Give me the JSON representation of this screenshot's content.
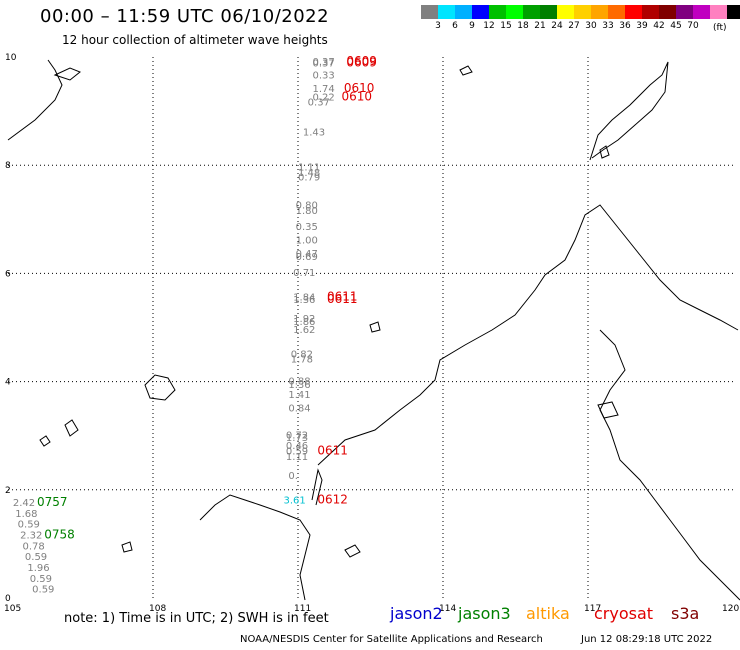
{
  "header": {
    "title": "00:00 – 11:59 UTC 06/10/2022",
    "subtitle": "12 hour collection of altimeter wave heights"
  },
  "scale": {
    "colors": [
      "#808080",
      "#00e5ff",
      "#00b0ff",
      "#0000ff",
      "#00c000",
      "#00ff00",
      "#00a000",
      "#008000",
      "#ffff00",
      "#ffd000",
      "#ffa500",
      "#ff6a00",
      "#ff0000",
      "#b00000",
      "#800000",
      "#800080",
      "#c000c0",
      "#ff80c0",
      "#000000"
    ],
    "labels": [
      "3",
      "6",
      "9",
      "12",
      "15",
      "18",
      "21",
      "24",
      "27",
      "30",
      "33",
      "36",
      "39",
      "42",
      "45",
      "70"
    ],
    "unit": "(ft)"
  },
  "axes": {
    "x_ticks": [
      "105",
      "108",
      "111",
      "114",
      "117",
      "120"
    ],
    "y_ticks": [
      "10",
      "8",
      "6",
      "4",
      "2",
      "0"
    ]
  },
  "observations": [
    {
      "lon": 111.3,
      "lat": 9.85,
      "value": "0.37",
      "color": "#808080"
    },
    {
      "lon": 111.3,
      "lat": 9.82,
      "value": "0.37",
      "color": "#808080"
    },
    {
      "lon": 111.3,
      "lat": 9.6,
      "value": "0.33",
      "color": "#808080"
    },
    {
      "lon": 111.3,
      "lat": 9.35,
      "value": "1.74",
      "color": "#808080"
    },
    {
      "lon": 111.3,
      "lat": 9.2,
      "value": "0.22",
      "color": "#808080"
    },
    {
      "lon": 111.2,
      "lat": 9.1,
      "value": "0.37",
      "color": "#808080"
    },
    {
      "lon": 111.1,
      "lat": 8.55,
      "value": "1.43",
      "color": "#808080"
    },
    {
      "lon": 111.0,
      "lat": 7.9,
      "value": "1.11",
      "color": "#808080"
    },
    {
      "lon": 111.0,
      "lat": 7.8,
      "value": "1.48",
      "color": "#808080"
    },
    {
      "lon": 111.0,
      "lat": 7.72,
      "value": "0.79",
      "color": "#808080"
    },
    {
      "lon": 110.95,
      "lat": 7.2,
      "value": "0.80",
      "color": "#808080"
    },
    {
      "lon": 110.95,
      "lat": 7.1,
      "value": "1.80",
      "color": "#808080"
    },
    {
      "lon": 110.95,
      "lat": 6.8,
      "value": "0.35",
      "color": "#808080"
    },
    {
      "lon": 110.95,
      "lat": 6.55,
      "value": "1.00",
      "color": "#808080"
    },
    {
      "lon": 110.95,
      "lat": 6.3,
      "value": "0.47",
      "color": "#808080"
    },
    {
      "lon": 110.95,
      "lat": 6.25,
      "value": "0.69",
      "color": "#808080"
    },
    {
      "lon": 110.9,
      "lat": 5.95,
      "value": "0.71",
      "color": "#808080"
    },
    {
      "lon": 110.9,
      "lat": 5.5,
      "value": "1.84",
      "color": "#808080"
    },
    {
      "lon": 110.9,
      "lat": 5.45,
      "value": "1.36",
      "color": "#808080"
    },
    {
      "lon": 110.9,
      "lat": 5.1,
      "value": "1.92",
      "color": "#808080"
    },
    {
      "lon": 110.9,
      "lat": 5.05,
      "value": "1.86",
      "color": "#808080"
    },
    {
      "lon": 110.9,
      "lat": 4.9,
      "value": "1.62",
      "color": "#808080"
    },
    {
      "lon": 110.85,
      "lat": 4.45,
      "value": "0.82",
      "color": "#808080"
    },
    {
      "lon": 110.85,
      "lat": 4.35,
      "value": "1.78",
      "color": "#808080"
    },
    {
      "lon": 110.8,
      "lat": 3.95,
      "value": "0.88",
      "color": "#808080"
    },
    {
      "lon": 110.8,
      "lat": 3.88,
      "value": "1.36",
      "color": "#808080"
    },
    {
      "lon": 110.8,
      "lat": 3.7,
      "value": "1.41",
      "color": "#808080"
    },
    {
      "lon": 110.8,
      "lat": 3.45,
      "value": "0.84",
      "color": "#808080"
    },
    {
      "lon": 110.75,
      "lat": 2.95,
      "value": "0.72",
      "color": "#808080"
    },
    {
      "lon": 110.75,
      "lat": 2.9,
      "value": "1.73",
      "color": "#808080"
    },
    {
      "lon": 110.75,
      "lat": 2.75,
      "value": "0.46",
      "color": "#808080"
    },
    {
      "lon": 110.75,
      "lat": 2.65,
      "value": "0.59",
      "color": "#808080"
    },
    {
      "lon": 110.75,
      "lat": 2.55,
      "value": "1.11",
      "color": "#808080"
    },
    {
      "lon": 110.8,
      "lat": 2.2,
      "value": "0.",
      "color": "#808080"
    },
    {
      "lon": 110.7,
      "lat": 1.75,
      "value": "3.61",
      "color": "#00c0d0"
    },
    {
      "lon": 105.1,
      "lat": 1.7,
      "value": "2.42",
      "color": "#808080"
    },
    {
      "lon": 105.15,
      "lat": 1.5,
      "value": "1.68",
      "color": "#808080"
    },
    {
      "lon": 105.2,
      "lat": 1.3,
      "value": "0.59",
      "color": "#808080"
    },
    {
      "lon": 105.25,
      "lat": 1.1,
      "value": "2.32",
      "color": "#808080"
    },
    {
      "lon": 105.3,
      "lat": 0.9,
      "value": "0.78",
      "color": "#808080"
    },
    {
      "lon": 105.35,
      "lat": 0.7,
      "value": "0.59",
      "color": "#808080"
    },
    {
      "lon": 105.4,
      "lat": 0.5,
      "value": "1.96",
      "color": "#808080"
    },
    {
      "lon": 105.45,
      "lat": 0.3,
      "value": "0.59",
      "color": "#808080"
    },
    {
      "lon": 105.5,
      "lat": 0.1,
      "value": "0.59",
      "color": "#808080"
    }
  ],
  "time_labels": [
    {
      "lon": 112.0,
      "lat": 9.85,
      "text": "0609",
      "color": "#e00000"
    },
    {
      "lon": 112.0,
      "lat": 9.82,
      "text": "0609",
      "color": "#e00000"
    },
    {
      "lon": 111.95,
      "lat": 9.35,
      "text": "0610",
      "color": "#e00000"
    },
    {
      "lon": 111.9,
      "lat": 9.2,
      "text": "0610",
      "color": "#e00000"
    },
    {
      "lon": 111.6,
      "lat": 5.5,
      "text": "0611",
      "color": "#e00000"
    },
    {
      "lon": 111.6,
      "lat": 5.45,
      "text": "0611",
      "color": "#e00000"
    },
    {
      "lon": 111.4,
      "lat": 2.65,
      "text": "0611",
      "color": "#e00000"
    },
    {
      "lon": 111.4,
      "lat": 1.75,
      "text": "0612",
      "color": "#e00000"
    },
    {
      "lon": 105.6,
      "lat": 1.7,
      "text": "0757",
      "color": "#008000"
    },
    {
      "lon": 105.75,
      "lat": 1.1,
      "text": "0758",
      "color": "#008000"
    }
  ],
  "footer": {
    "note": "note: 1) Time is in UTC; 2) SWH is in feet",
    "legend": [
      {
        "name": "jason2",
        "color": "#0000cc"
      },
      {
        "name": "jason3",
        "color": "#008000"
      },
      {
        "name": "altika",
        "color": "#ff9900"
      },
      {
        "name": "cryosat",
        "color": "#e00000"
      },
      {
        "name": "s3a",
        "color": "#800000"
      }
    ],
    "credit": "NOAA/NESDIS Center for Satellite Applications and Research",
    "generated": "Jun 12 08:29:18 UTC 2022"
  }
}
